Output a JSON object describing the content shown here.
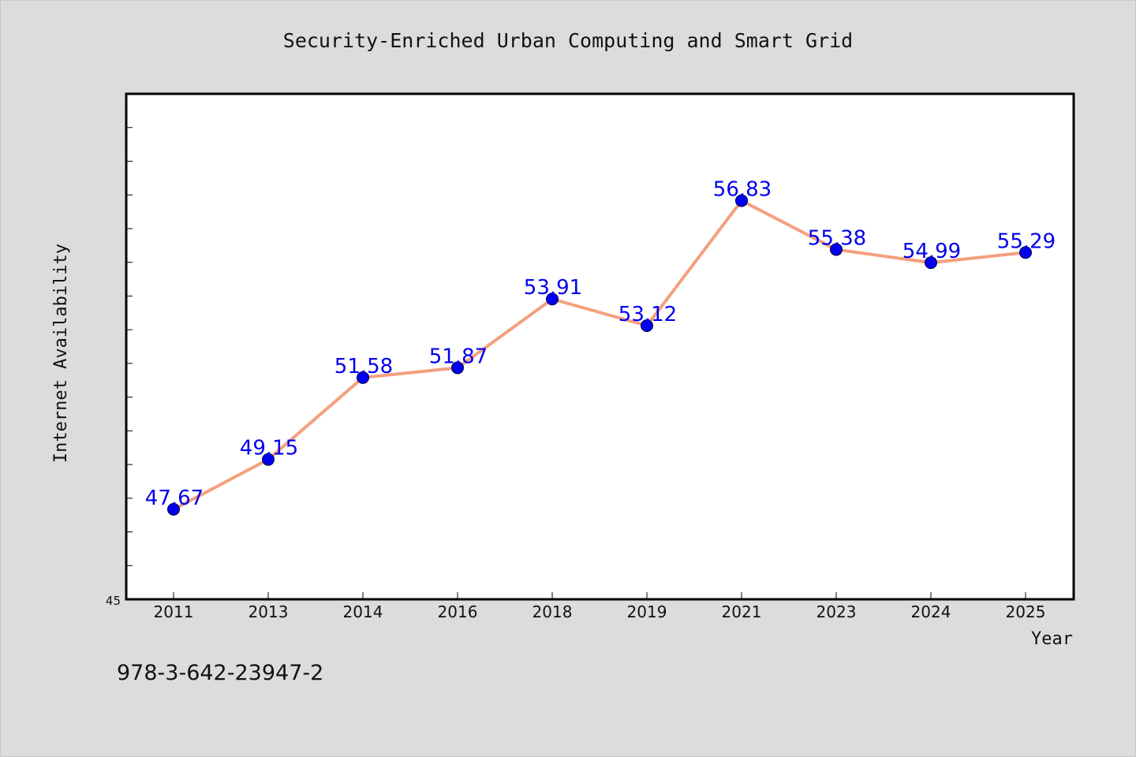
{
  "chart_data": {
    "type": "line",
    "title": "Security-Enriched Urban Computing and Smart Grid",
    "xlabel": "Year",
    "ylabel": "Internet Availability",
    "categories": [
      "2011",
      "2013",
      "2014",
      "2016",
      "2018",
      "2019",
      "2021",
      "2023",
      "2024",
      "2025"
    ],
    "series": [
      {
        "values": [
          47.67,
          49.15,
          51.58,
          51.87,
          53.91,
          53.12,
          56.83,
          55.38,
          54.99,
          55.29
        ],
        "value_labels": [
          "47.67",
          "49.15",
          "51.58",
          "51.87",
          "53.91",
          "53.12",
          "56.83",
          "55.38",
          "54.99",
          "55.29"
        ]
      }
    ],
    "ylim": [
      45,
      60
    ],
    "y_tick_label": "45",
    "grid": false,
    "line_color": "#f4a07e",
    "marker_color": "#0000ee",
    "label_color": "#0000ee"
  },
  "footer_text": "978-3-642-23947-2"
}
